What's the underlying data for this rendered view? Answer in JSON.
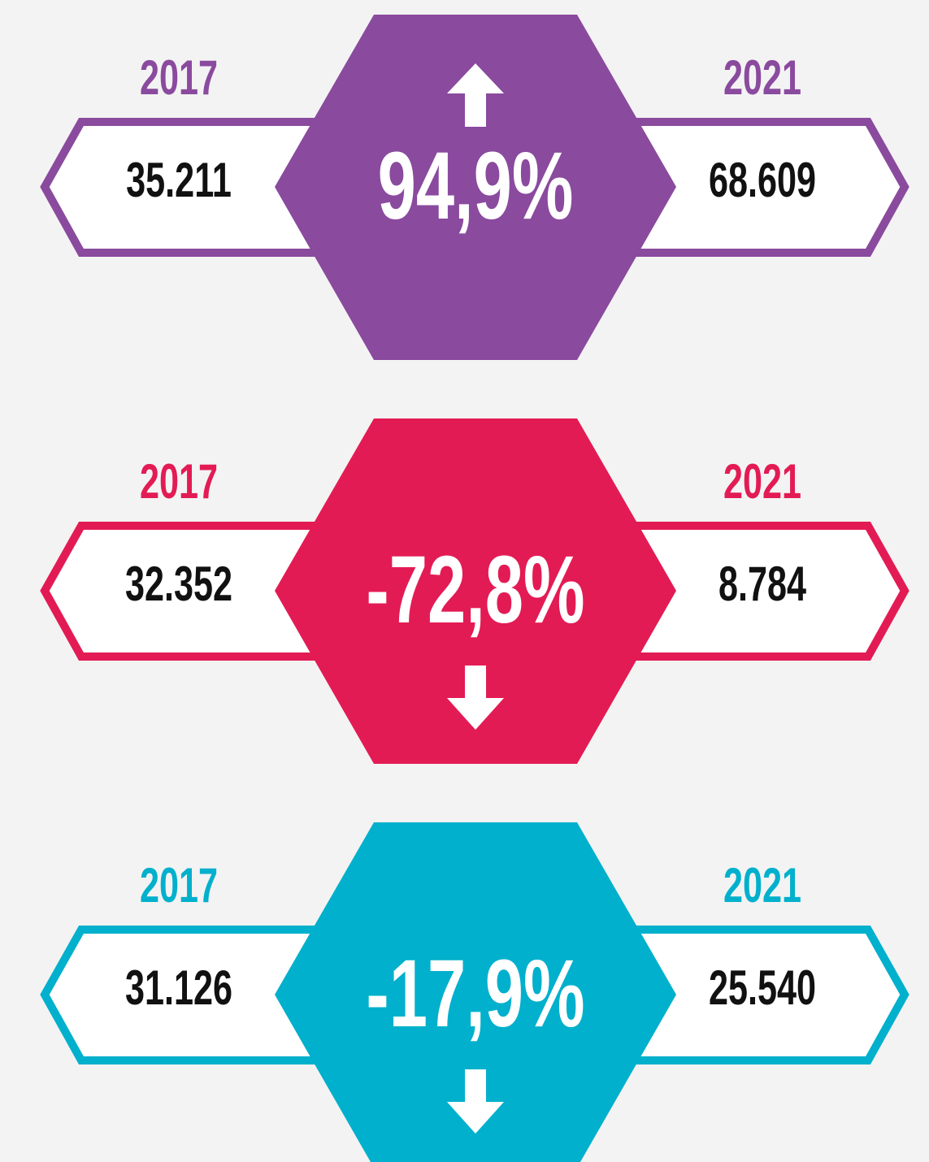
{
  "blocks": [
    {
      "color": "#8a4a9e",
      "direction": "up",
      "left_year": "2017",
      "left_value": "35.211",
      "change": "94,9%",
      "right_year": "2021",
      "right_value": "68.609"
    },
    {
      "color": "#e31b54",
      "direction": "down",
      "left_year": "2017",
      "left_value": "32.352",
      "change": "-72,8%",
      "right_year": "2021",
      "right_value": "8.784"
    },
    {
      "color": "#00b0cc",
      "direction": "down",
      "left_year": "2017",
      "left_value": "31.126",
      "change": "-17,9%",
      "right_year": "2021",
      "right_value": "25.540"
    }
  ]
}
